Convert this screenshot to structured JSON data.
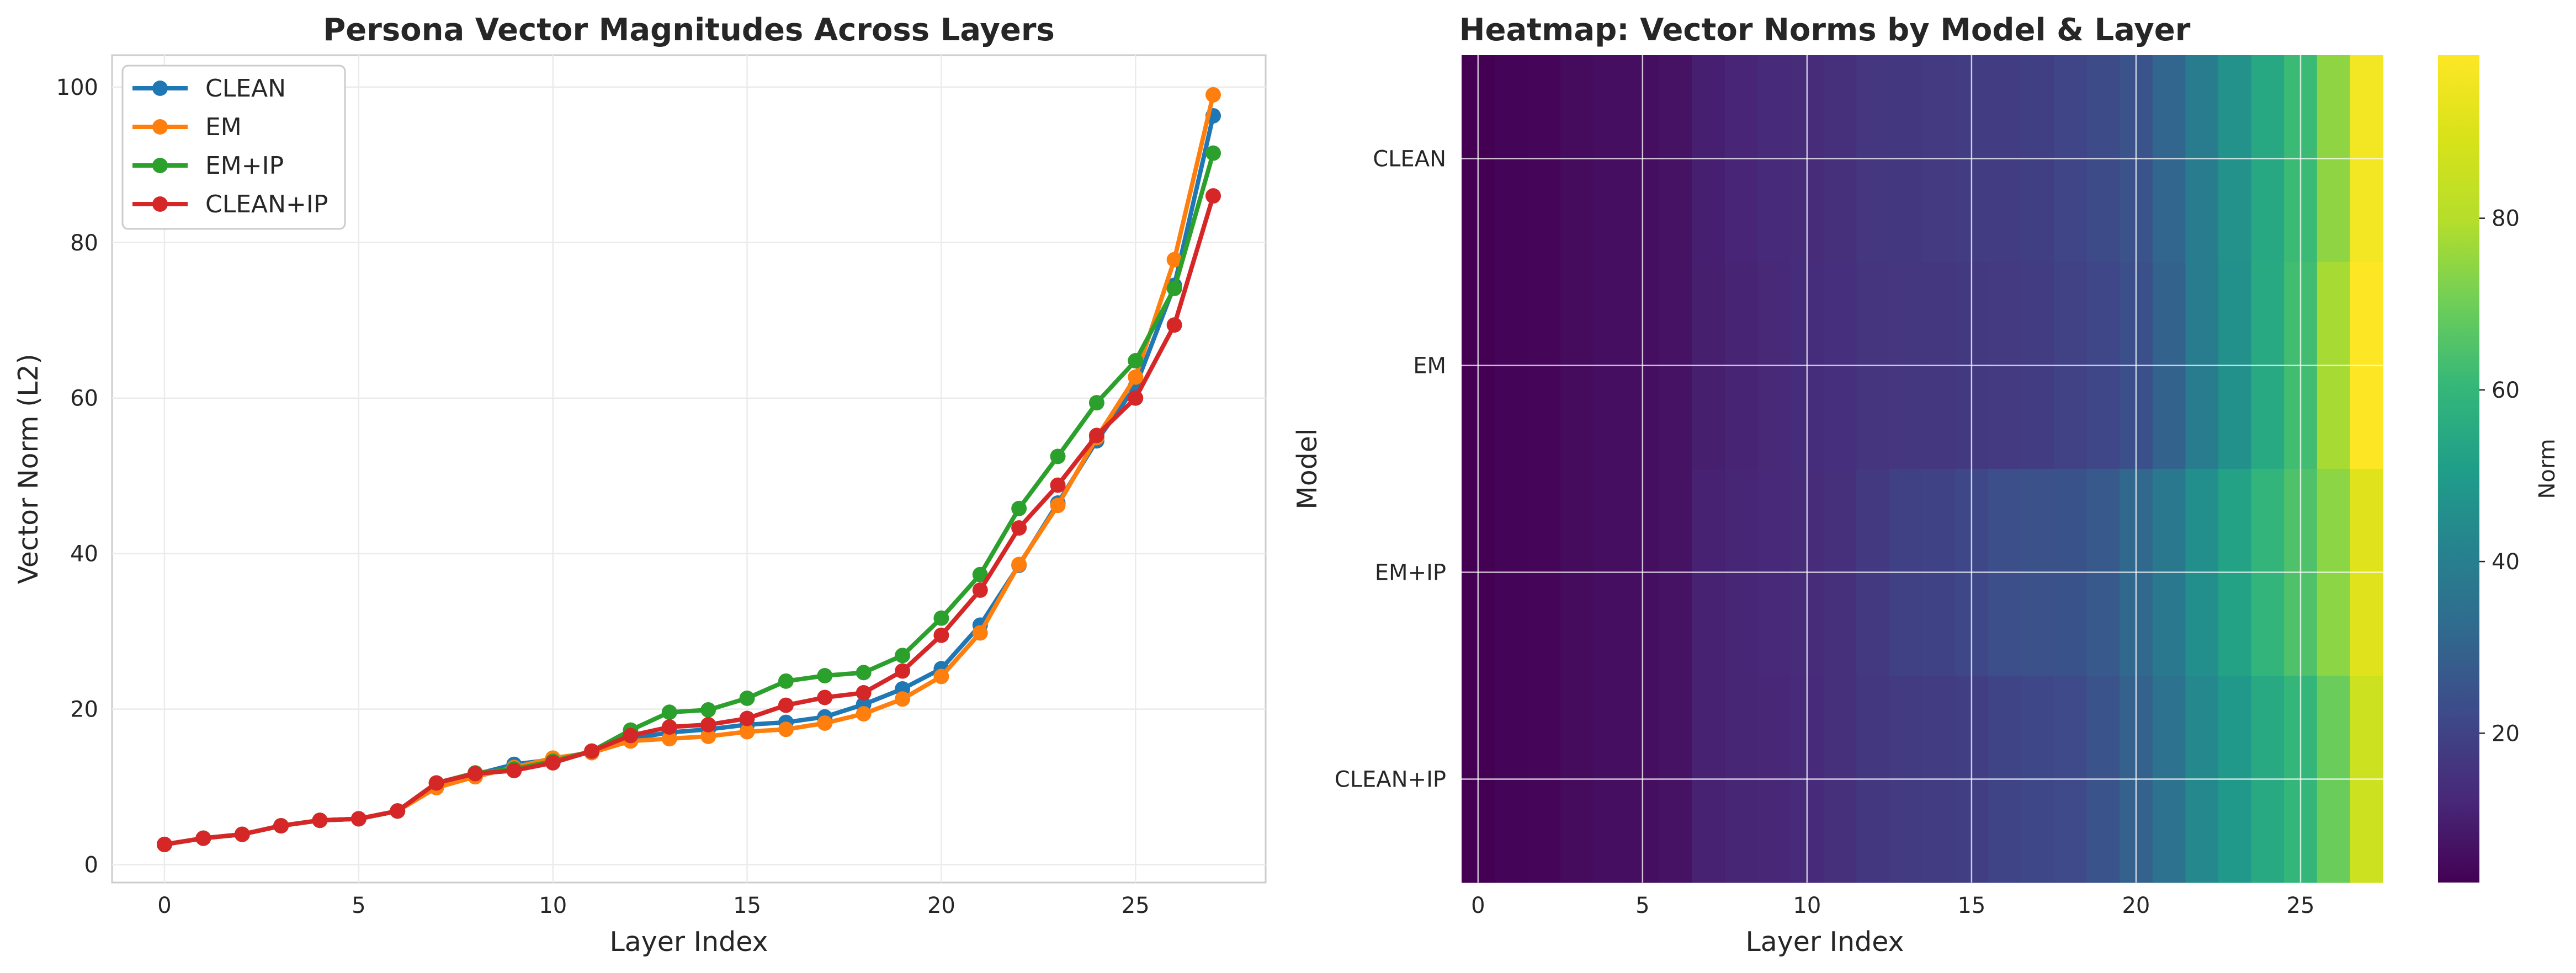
{
  "chart_data": [
    {
      "type": "line",
      "title": "Persona Vector Magnitudes Across Layers",
      "xlabel": "Layer Index",
      "ylabel": "Vector Norm (L2)",
      "xlim": [
        -1.35,
        28.35
      ],
      "ylim": [
        -2.3,
        104.1
      ],
      "xticks": [
        0,
        5,
        10,
        15,
        20,
        25
      ],
      "yticks": [
        0,
        20,
        40,
        60,
        80,
        100
      ],
      "grid": true,
      "legend_position": "top-left",
      "x": [
        0,
        1,
        2,
        3,
        4,
        5,
        6,
        7,
        8,
        9,
        10,
        11,
        12,
        13,
        14,
        15,
        16,
        17,
        18,
        19,
        20,
        21,
        22,
        23,
        24,
        25,
        26,
        27
      ],
      "series": [
        {
          "name": "CLEAN",
          "color": "#1f77b4",
          "values": [
            2.6,
            3.4,
            3.9,
            5.0,
            5.7,
            5.9,
            6.9,
            10.0,
            11.6,
            12.9,
            13.5,
            14.5,
            16.2,
            17.0,
            17.4,
            18.0,
            18.3,
            19.0,
            20.6,
            22.6,
            25.2,
            30.8,
            38.5,
            46.5,
            54.5,
            61.5,
            74.5,
            96.3
          ]
        },
        {
          "name": "EM",
          "color": "#ff7f0e",
          "values": [
            2.6,
            3.4,
            3.9,
            5.0,
            5.7,
            5.9,
            6.9,
            9.9,
            11.3,
            12.5,
            13.7,
            14.4,
            15.9,
            16.2,
            16.5,
            17.1,
            17.4,
            18.2,
            19.4,
            21.3,
            24.2,
            29.8,
            38.6,
            46.2,
            54.9,
            62.7,
            77.8,
            99.0
          ]
        },
        {
          "name": "EM+IP",
          "color": "#2ca02c",
          "values": [
            2.6,
            3.4,
            3.9,
            5.0,
            5.7,
            5.9,
            6.9,
            10.5,
            11.8,
            12.3,
            13.3,
            14.6,
            17.3,
            19.6,
            19.9,
            21.4,
            23.6,
            24.3,
            24.7,
            26.9,
            31.7,
            37.3,
            45.8,
            52.5,
            59.4,
            64.8,
            74.1,
            91.5
          ]
        },
        {
          "name": "CLEAN+IP",
          "color": "#d62728",
          "values": [
            2.6,
            3.4,
            3.9,
            5.0,
            5.7,
            5.9,
            6.9,
            10.5,
            11.7,
            12.1,
            13.1,
            14.6,
            16.6,
            17.7,
            18.0,
            18.8,
            20.5,
            21.5,
            22.1,
            24.9,
            29.5,
            35.3,
            43.3,
            48.8,
            55.2,
            60.0,
            69.4,
            86.0
          ]
        }
      ]
    },
    {
      "type": "heatmap",
      "title": "Heatmap: Vector Norms by Model & Layer",
      "xlabel": "Layer Index",
      "ylabel": "Model",
      "xticks": [
        0,
        5,
        10,
        15,
        20,
        25
      ],
      "rows": [
        "CLEAN",
        "EM",
        "EM+IP",
        "CLEAN+IP"
      ],
      "colormap": "viridis",
      "colorbar_label": "Norm",
      "colorbar_ticks": [
        20,
        40,
        60,
        80
      ],
      "vmin": 2.6,
      "vmax": 99.0,
      "grid": true
    }
  ]
}
